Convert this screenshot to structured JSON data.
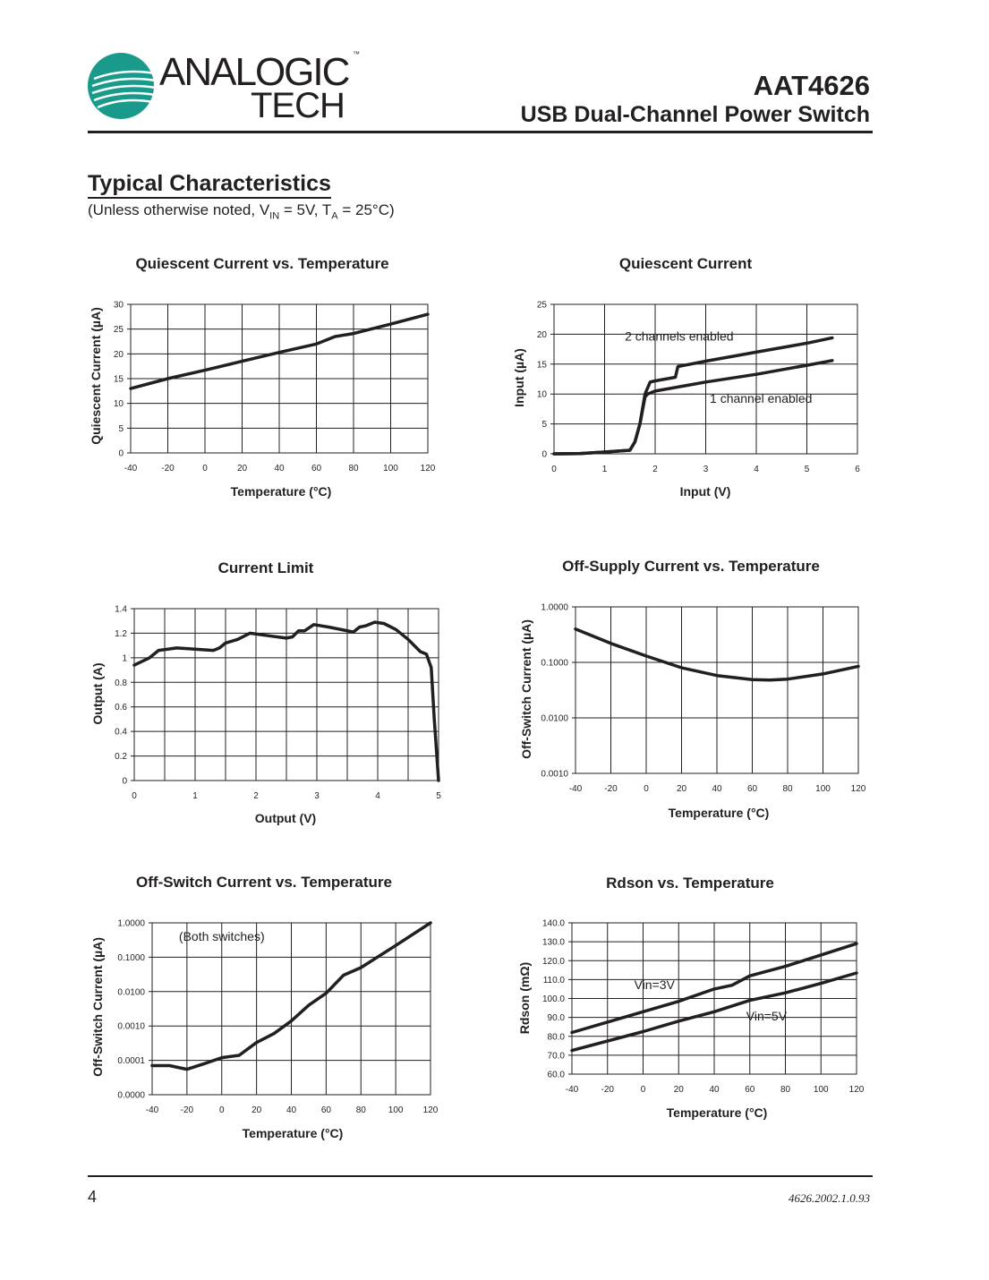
{
  "header": {
    "logo": {
      "line1": "ANALOGIC",
      "line2": "TECH",
      "tm": "™",
      "color": "#1a9a8a"
    },
    "part_number": "AAT4626",
    "product_name": "USB Dual-Channel Power Switch"
  },
  "section": {
    "title": "Typical Characteristics",
    "subtitle_pre": "(Unless otherwise noted, V",
    "subtitle_sub1": "IN",
    "subtitle_mid": " = 5V, T",
    "subtitle_sub2": "A",
    "subtitle_post": " = 25°C)"
  },
  "footer": {
    "page": "4",
    "doc_number": "4626.2002.1.0.93"
  },
  "chart_data": [
    {
      "type": "line",
      "title": "Quiescent Current vs. Temperature",
      "xlabel": "Temperature (°C)",
      "ylabel": "Quiescent Current (µA)",
      "xlim": [
        -40,
        120
      ],
      "ylim": [
        0,
        30
      ],
      "yscale": "linear",
      "grid": true,
      "xticks": [
        -40,
        -20,
        0,
        20,
        40,
        60,
        80,
        100,
        120
      ],
      "xtick_labels": [
        "-40",
        "-20",
        "0",
        "20",
        "40",
        "60",
        "80",
        "100",
        "120"
      ],
      "yticks": [
        0,
        5,
        10,
        15,
        20,
        25,
        30
      ],
      "ytick_labels": [
        "0",
        "5",
        "10",
        "15",
        "20",
        "25",
        "30"
      ],
      "series": [
        {
          "x": [
            -40,
            -20,
            0,
            20,
            40,
            60,
            70,
            80,
            100,
            120
          ],
          "y": [
            13,
            15,
            16.7,
            18.5,
            20.3,
            22,
            23.5,
            24.1,
            26,
            28
          ]
        }
      ],
      "annotations": []
    },
    {
      "type": "line",
      "title": "Quiescent Current",
      "xlabel": "Input (V)",
      "ylabel": "Input (µA)",
      "xlim": [
        0,
        6
      ],
      "ylim": [
        0,
        25
      ],
      "yscale": "linear",
      "grid": true,
      "xticks": [
        0,
        1,
        2,
        3,
        4,
        5,
        6
      ],
      "xtick_labels": [
        "0",
        "1",
        "2",
        "3",
        "4",
        "5",
        "6"
      ],
      "yticks": [
        0,
        5,
        10,
        15,
        20,
        25
      ],
      "ytick_labels": [
        "0",
        "5",
        "10",
        "15",
        "20",
        "25"
      ],
      "series": [
        {
          "name": "2 channels enabled",
          "x": [
            0,
            0.5,
            1,
            1.5,
            1.6,
            1.7,
            1.8,
            1.9,
            2,
            2.4,
            2.45,
            3,
            4,
            5,
            5.5
          ],
          "y": [
            0,
            0.05,
            0.3,
            0.6,
            2,
            5,
            10,
            12,
            12.2,
            12.8,
            14.6,
            15.5,
            17,
            18.5,
            19.4
          ]
        },
        {
          "name": "1 channel enabled",
          "x": [
            0,
            0.5,
            1,
            1.5,
            1.6,
            1.7,
            1.8,
            1.85,
            2,
            3,
            4,
            5,
            5.5
          ],
          "y": [
            0,
            0.05,
            0.3,
            0.6,
            2,
            5,
            9.5,
            10,
            10.5,
            12,
            13.3,
            14.8,
            15.6
          ]
        }
      ],
      "annotations": [
        {
          "text": "2 channels enabled",
          "x": 1.4,
          "y": 18.9
        },
        {
          "text": "1 channel enabled",
          "x": 3.08,
          "y": 8.5
        }
      ]
    },
    {
      "type": "line",
      "title": "Current Limit",
      "xlabel": "Output (V)",
      "ylabel": "Output (A)",
      "xlim": [
        0,
        5
      ],
      "ylim": [
        0,
        1.4
      ],
      "yscale": "linear",
      "grid": true,
      "xticks": [
        0,
        1,
        2,
        3,
        4,
        5
      ],
      "xtick_labels": [
        "0",
        "1",
        "2",
        "3",
        "4",
        "5"
      ],
      "yticks": [
        0,
        0.2,
        0.4,
        0.6,
        0.8,
        1,
        1.2,
        1.4
      ],
      "ytick_labels": [
        "0",
        "0.2",
        "0.4",
        "0.6",
        "0.8",
        "1",
        "1.2",
        "1.4"
      ],
      "series": [
        {
          "x": [
            0,
            0.25,
            0.4,
            0.7,
            1,
            1.3,
            1.4,
            1.5,
            1.7,
            1.9,
            2.2,
            2.5,
            2.6,
            2.7,
            2.8,
            2.95,
            3.2,
            3.6,
            3.7,
            3.8,
            3.95,
            4.1,
            4.3,
            4.5,
            4.7,
            4.8,
            4.88,
            4.93,
            5
          ],
          "y": [
            0.94,
            1,
            1.06,
            1.08,
            1.07,
            1.06,
            1.08,
            1.12,
            1.15,
            1.2,
            1.18,
            1.16,
            1.17,
            1.22,
            1.22,
            1.27,
            1.25,
            1.21,
            1.25,
            1.26,
            1.29,
            1.28,
            1.23,
            1.15,
            1.05,
            1.03,
            0.92,
            0.5,
            0
          ]
        }
      ],
      "annotations": []
    },
    {
      "type": "line",
      "title": "Off-Supply Current vs. Temperature",
      "xlabel": "Temperature (°C)",
      "ylabel": "Off-Switch Current (µA)",
      "xlim": [
        -40,
        120
      ],
      "ylim": [
        0.001,
        1
      ],
      "yscale": "log",
      "grid": true,
      "xticks": [
        -40,
        -20,
        0,
        20,
        40,
        60,
        80,
        100,
        120
      ],
      "xtick_labels": [
        "-40",
        "-20",
        "0",
        "20",
        "40",
        "60",
        "80",
        "100",
        "120"
      ],
      "yticks": [
        0.001,
        0.01,
        0.1,
        1
      ],
      "ytick_labels": [
        "0.0010",
        "0.0100",
        "0.1000",
        "1.0000"
      ],
      "series": [
        {
          "x": [
            -40,
            -20,
            0,
            20,
            40,
            60,
            70,
            80,
            100,
            120
          ],
          "y": [
            0.4,
            0.22,
            0.13,
            0.08,
            0.058,
            0.049,
            0.048,
            0.05,
            0.062,
            0.085
          ]
        }
      ],
      "annotations": []
    },
    {
      "type": "line",
      "title": "Off-Switch Current vs. Temperature",
      "xlabel": "Temperature (°C)",
      "ylabel": "Off-Switch Current (µA)",
      "xlim": [
        -40,
        120
      ],
      "ylim": [
        1e-05,
        1
      ],
      "yscale": "log",
      "grid": true,
      "xticks": [
        -40,
        -20,
        0,
        20,
        40,
        60,
        80,
        100,
        120
      ],
      "xtick_labels": [
        "-40",
        "-20",
        "0",
        "20",
        "40",
        "60",
        "80",
        "100",
        "120"
      ],
      "yticks": [
        1e-05,
        0.0001,
        0.001,
        0.01,
        0.1,
        1
      ],
      "ytick_labels": [
        "0.0000",
        "0.0001",
        "0.0010",
        "0.0100",
        "0.1000",
        "1.0000"
      ],
      "series": [
        {
          "x": [
            -40,
            -30,
            -20,
            -10,
            0,
            10,
            20,
            30,
            40,
            50,
            60,
            70,
            80,
            100,
            120
          ],
          "y": [
            7e-05,
            7e-05,
            5.5e-05,
            8e-05,
            0.00012,
            0.00014,
            0.00033,
            0.0006,
            0.0014,
            0.004,
            0.009,
            0.03,
            0.05,
            0.22,
            1
          ]
        }
      ],
      "annotations": [
        {
          "text": "(Both switches)",
          "x": -24.6,
          "y": 0.3
        }
      ]
    },
    {
      "type": "line",
      "title": "Rdson vs. Temperature",
      "xlabel": "Temperature (°C)",
      "ylabel": "Rdson (mΩ)",
      "xlim": [
        -40,
        120
      ],
      "ylim": [
        60,
        140
      ],
      "yscale": "linear",
      "grid": true,
      "xticks": [
        -40,
        -20,
        0,
        20,
        40,
        60,
        80,
        100,
        120
      ],
      "xtick_labels": [
        "-40",
        "-20",
        "0",
        "20",
        "40",
        "60",
        "80",
        "100",
        "120"
      ],
      "yticks": [
        60,
        70,
        80,
        90,
        100,
        110,
        120,
        130,
        140
      ],
      "ytick_labels": [
        "60.0",
        "70.0",
        "80.0",
        "90.0",
        "100.0",
        "110.0",
        "120.0",
        "130.0",
        "140.0"
      ],
      "series": [
        {
          "name": "Vin=3V",
          "x": [
            -40,
            0,
            20,
            40,
            50,
            60,
            80,
            100,
            120
          ],
          "y": [
            82,
            93,
            98.5,
            105,
            107,
            112,
            117,
            123,
            129
          ]
        },
        {
          "name": "Vin=5V",
          "x": [
            -40,
            0,
            20,
            40,
            60,
            80,
            100,
            120
          ],
          "y": [
            72.5,
            82.5,
            88,
            93,
            99,
            103,
            108,
            113.5
          ]
        }
      ],
      "annotations": [
        {
          "text": "Vin=3V",
          "x": -5,
          "y": 105
        },
        {
          "text": "Vin=5V",
          "x": 58,
          "y": 88.4
        }
      ]
    }
  ]
}
